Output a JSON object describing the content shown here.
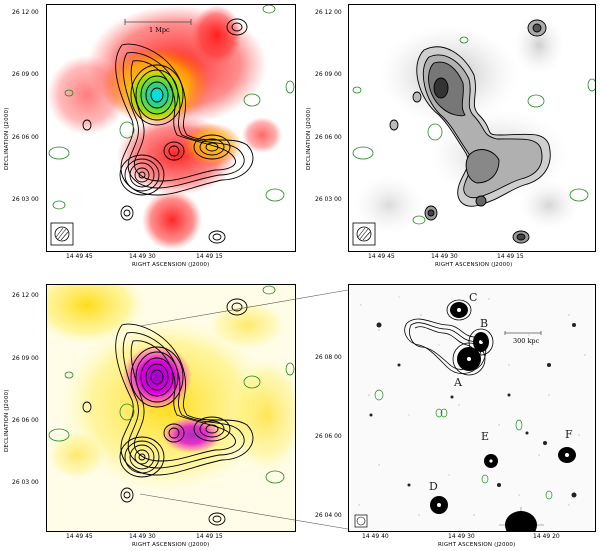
{
  "panels": {
    "top_left": {
      "ra_ticks": [
        "14 49 45",
        "14 49 30",
        "14 49 15"
      ],
      "dec_ticks": [
        "26 12 00",
        "26 09 00",
        "26 06 00",
        "26 03 00"
      ],
      "xlabel": "RIGHT ASCENSION (J2000)",
      "ylabel": "DECLINATION (J2000)",
      "scale_label": "1 Mpc"
    },
    "top_right": {
      "ra_ticks": [
        "14 49 45",
        "14 49 30",
        "14 49 15"
      ],
      "dec_ticks": [
        "26 12 00",
        "26 09 00",
        "26 06 00",
        "26 03 00"
      ],
      "xlabel": "RIGHT ASCENSION (J2000)",
      "ylabel": "DECLINATION (J2000)"
    },
    "bottom_left": {
      "ra_ticks": [
        "14 49 45",
        "14 49 30",
        "14 49 15"
      ],
      "dec_ticks": [
        "26 12 00",
        "26 09 00",
        "26 06 00",
        "26 03 00"
      ],
      "xlabel": "RIGHT ASCENSION (J2000)",
      "ylabel": "DECLINATION (J2000)"
    },
    "bottom_right": {
      "ra_ticks": [
        "14 49 40",
        "14 49 30",
        "14 49 20"
      ],
      "dec_ticks": [
        "26 08 00",
        "26 06 00",
        "26 04 00"
      ],
      "xlabel": "RIGHT ASCENSION (J2000)",
      "ylabel": "DECLINATION (J2000)",
      "scale_label": "300 kpc",
      "sources": [
        "A",
        "B",
        "C",
        "D",
        "E",
        "F"
      ]
    }
  },
  "colors": {
    "contour": "#000000",
    "negative_contour": "#1f8a1f",
    "frame": "#000000"
  }
}
